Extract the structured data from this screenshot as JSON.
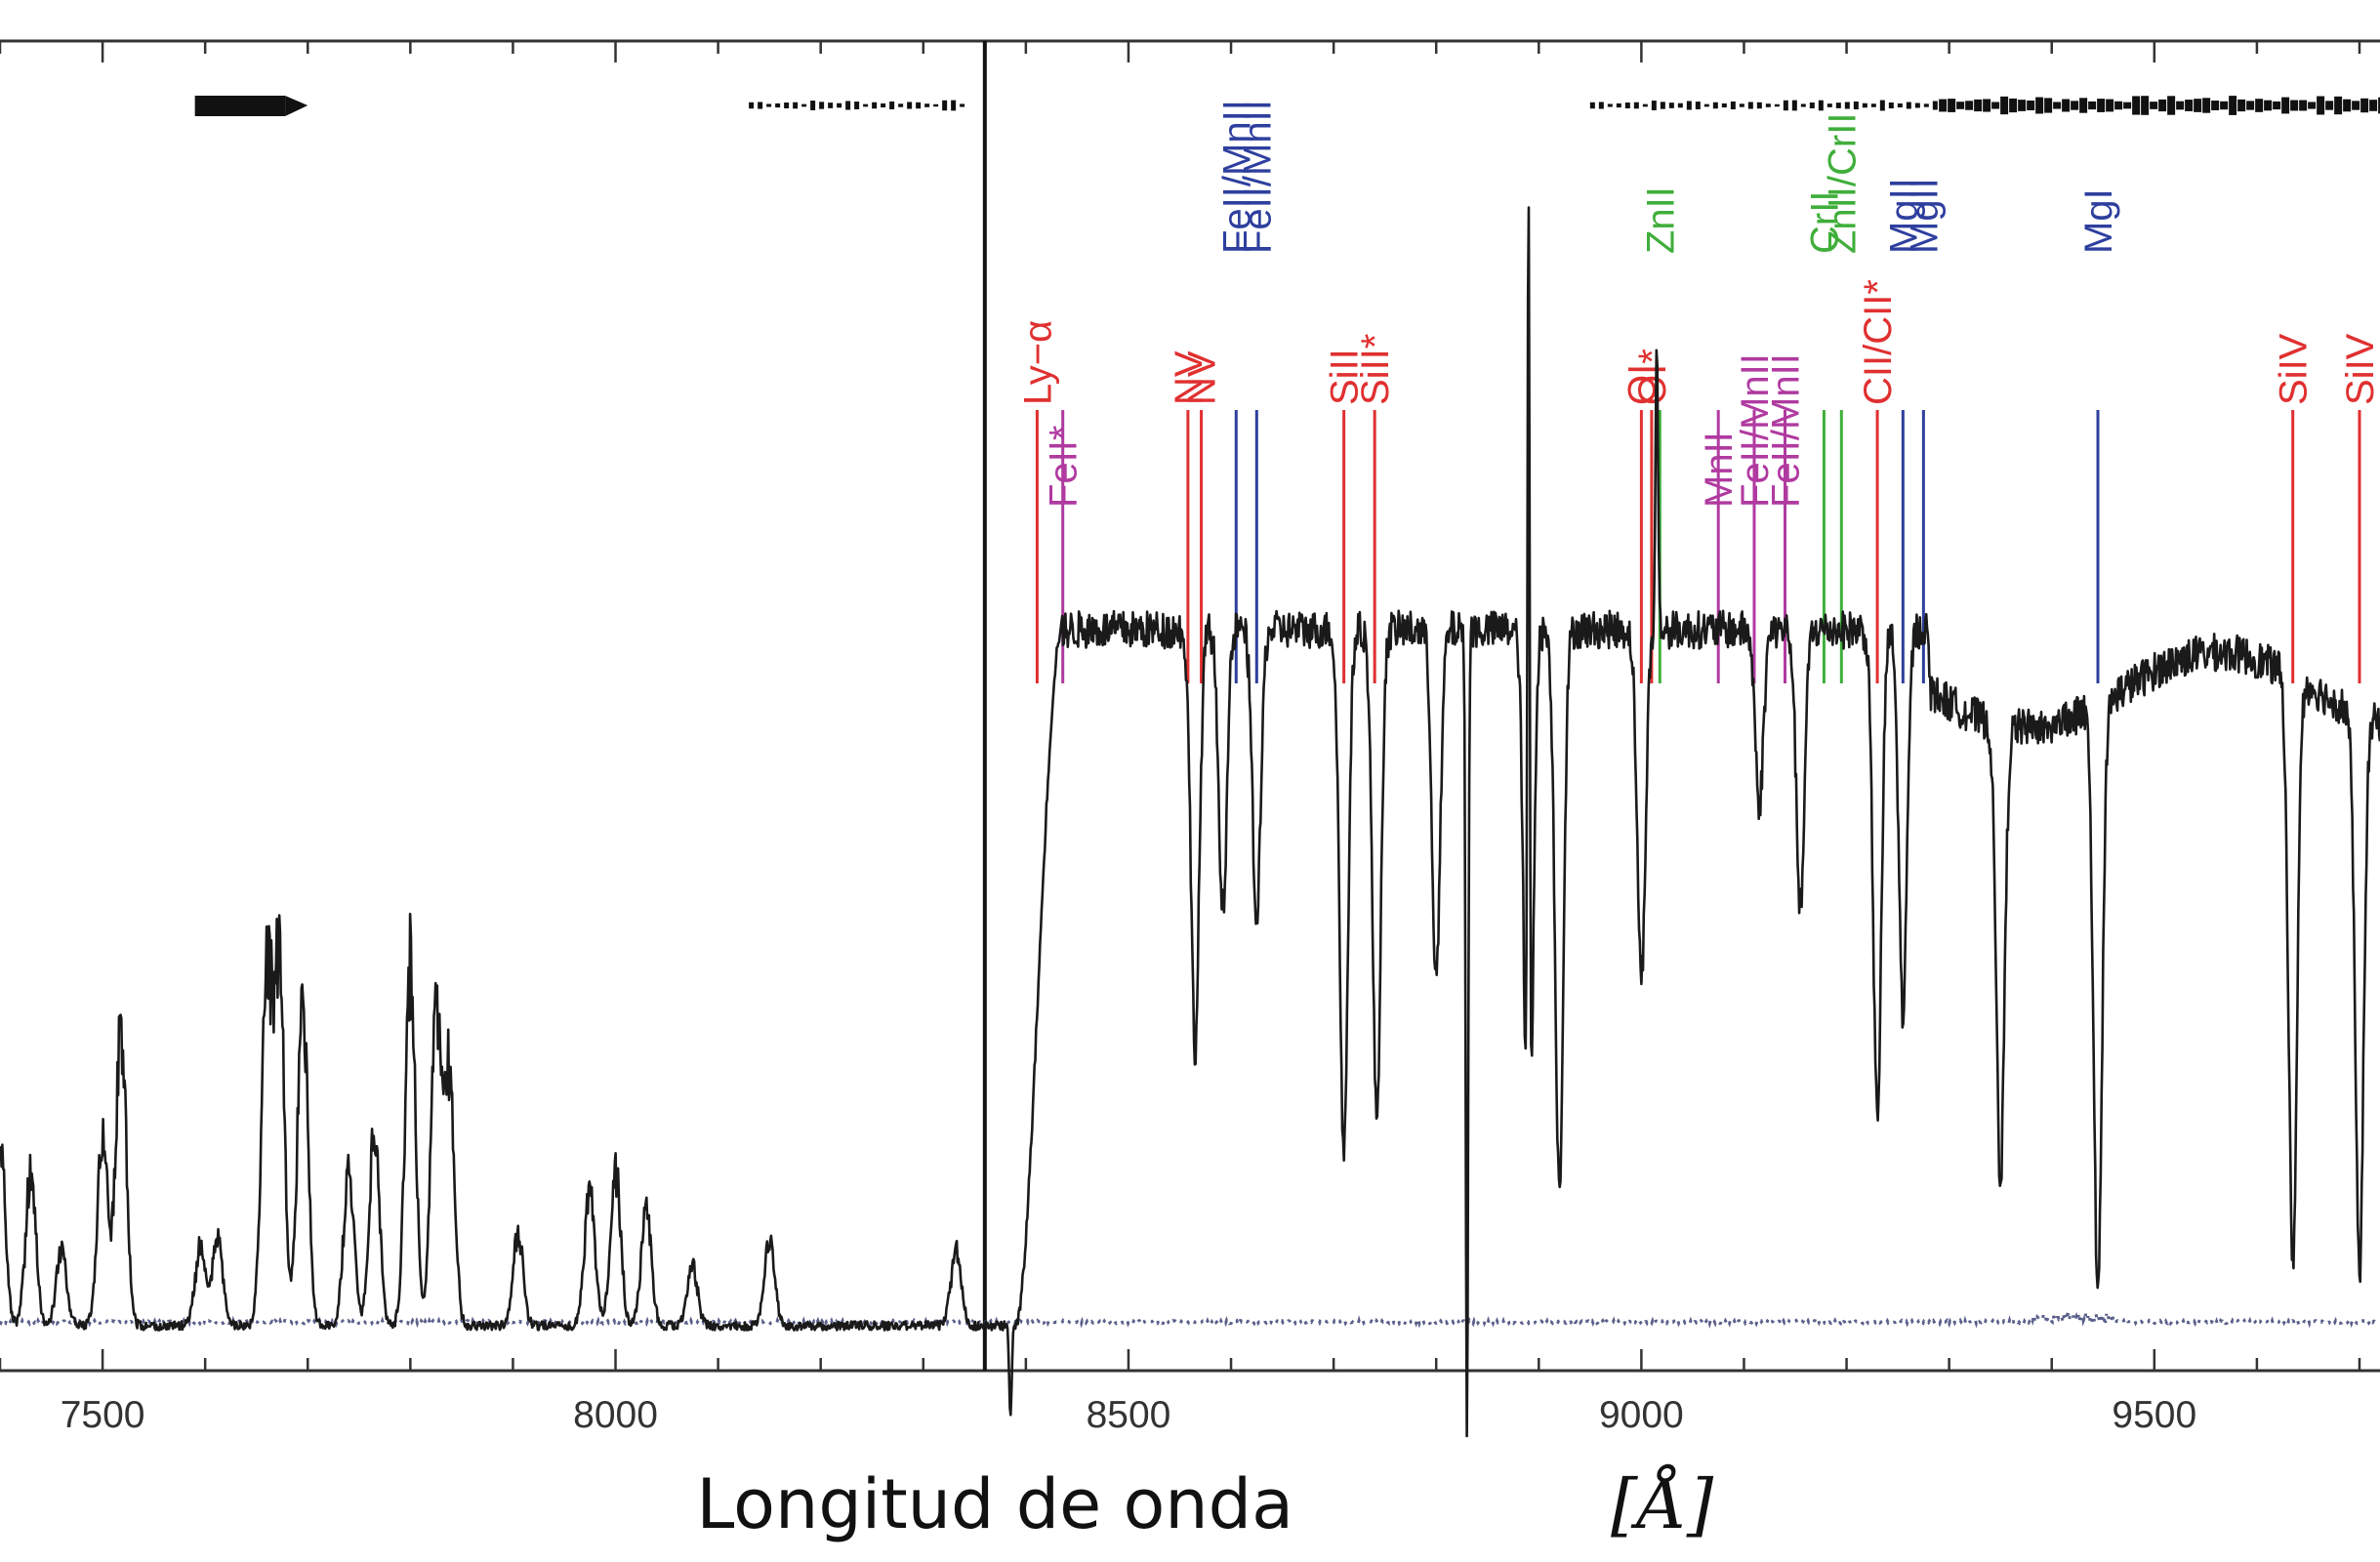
{
  "chart_data": {
    "type": "line",
    "title": "",
    "xlabel": "Longitud de onda",
    "xunit": "[Å]",
    "ylabel": "",
    "xlim": [
      7400,
      9720
    ],
    "ylim": [
      -0.15,
      1.7
    ],
    "x_ticks": [
      7500,
      8000,
      8500,
      9000,
      9500
    ],
    "x_tick_labels": [
      "7500",
      "8000",
      "8500",
      "9000",
      "9500"
    ],
    "grid": false,
    "colors": {
      "spectrum": "#1a1a1a",
      "error": "#5a5f8a",
      "red": "#e03030",
      "magenta": "#b03aa0",
      "blue": "#2e3f9e",
      "green": "#3fae3a"
    },
    "features": [
      {
        "label": "Ly−α",
        "wavelength": 8411,
        "color": "red",
        "tier": 2
      },
      {
        "label": "FeII*",
        "wavelength": 8436,
        "color": "magenta",
        "tier": 1
      },
      {
        "label": "NV",
        "wavelength": 8558,
        "color": "red",
        "tier": 2
      },
      {
        "label": "NV",
        "wavelength": 8571,
        "color": "red",
        "tier": 2
      },
      {
        "label": "FeII/MnII",
        "wavelength": 8605,
        "color": "blue",
        "tier": 3
      },
      {
        "label": "FeII/MnII",
        "wavelength": 8625,
        "color": "blue",
        "tier": 3
      },
      {
        "label": "SiII",
        "wavelength": 8710,
        "color": "red",
        "tier": 2
      },
      {
        "label": "SiII*",
        "wavelength": 8740,
        "color": "red",
        "tier": 2
      },
      {
        "label": "OI",
        "wavelength": 9000,
        "color": "red",
        "tier": 2
      },
      {
        "label": "OI*",
        "wavelength": 9010,
        "color": "red",
        "tier": 2
      },
      {
        "label": "ZnII",
        "wavelength": 9018,
        "color": "green",
        "tier": 3
      },
      {
        "label": "MnII",
        "wavelength": 9075,
        "color": "magenta",
        "tier": 1
      },
      {
        "label": "FeII/MnII",
        "wavelength": 9110,
        "color": "magenta",
        "tier": 1
      },
      {
        "label": "FeII/MnII",
        "wavelength": 9140,
        "color": "magenta",
        "tier": 1
      },
      {
        "label": "CrII",
        "wavelength": 9178,
        "color": "green",
        "tier": 3
      },
      {
        "label": "ZnII/CrII",
        "wavelength": 9195,
        "color": "green",
        "tier": 3
      },
      {
        "label": "CII/CII*",
        "wavelength": 9230,
        "color": "red",
        "tier": 2
      },
      {
        "label": "MgII",
        "wavelength": 9255,
        "color": "blue",
        "tier": 3
      },
      {
        "label": "MgII",
        "wavelength": 9275,
        "color": "blue",
        "tier": 3
      },
      {
        "label": "MgI",
        "wavelength": 9445,
        "color": "blue",
        "tier": 3
      },
      {
        "label": "SiIV",
        "wavelength": 9635,
        "color": "red",
        "tier": 2
      },
      {
        "label": "SiIV",
        "wavelength": 9700,
        "color": "red",
        "tier": 2
      }
    ],
    "vertical_marker": {
      "wavelength": 8360
    },
    "telluric_bands": [
      {
        "from": 7590,
        "to": 7700,
        "strength": "strong"
      },
      {
        "from": 8130,
        "to": 8340,
        "strength": "weak"
      },
      {
        "from": 8950,
        "to": 9290,
        "strength": "weak"
      },
      {
        "from": 9290,
        "to": 9720,
        "strength": "strong"
      }
    ],
    "continuum_blue": 0.0,
    "continuum_red": 0.92,
    "emission_peaks": [
      {
        "x": 7400,
        "y": 0.25
      },
      {
        "x": 7430,
        "y": 0.2
      },
      {
        "x": 7460,
        "y": 0.1
      },
      {
        "x": 7500,
        "y": 0.25
      },
      {
        "x": 7518,
        "y": 0.4
      },
      {
        "x": 7595,
        "y": 0.1
      },
      {
        "x": 7612,
        "y": 0.12
      },
      {
        "x": 7660,
        "y": 0.45
      },
      {
        "x": 7672,
        "y": 0.47
      },
      {
        "x": 7695,
        "y": 0.43
      },
      {
        "x": 7740,
        "y": 0.2
      },
      {
        "x": 7765,
        "y": 0.25
      },
      {
        "x": 7800,
        "y": 0.48
      },
      {
        "x": 7825,
        "y": 0.4
      },
      {
        "x": 7838,
        "y": 0.33
      },
      {
        "x": 7905,
        "y": 0.12
      },
      {
        "x": 7975,
        "y": 0.18
      },
      {
        "x": 8000,
        "y": 0.2
      },
      {
        "x": 8030,
        "y": 0.15
      },
      {
        "x": 8075,
        "y": 0.08
      },
      {
        "x": 8150,
        "y": 0.11
      },
      {
        "x": 8332,
        "y": 0.1
      }
    ],
    "absorption_lines": [
      {
        "x": 8565,
        "depth": 0.6
      },
      {
        "x": 8592,
        "depth": 0.4
      },
      {
        "x": 8625,
        "depth": 0.42
      },
      {
        "x": 8710,
        "depth": 0.75
      },
      {
        "x": 8742,
        "depth": 0.7
      },
      {
        "x": 8800,
        "depth": 0.5
      },
      {
        "x": 8890,
        "depth": 0.9
      },
      {
        "x": 8920,
        "depth": 0.8
      },
      {
        "x": 9000,
        "depth": 0.5
      },
      {
        "x": 9115,
        "depth": 0.25
      },
      {
        "x": 9155,
        "depth": 0.4
      },
      {
        "x": 9230,
        "depth": 0.7
      },
      {
        "x": 9255,
        "depth": 0.55
      },
      {
        "x": 9350,
        "depth": 0.65
      },
      {
        "x": 9445,
        "depth": 0.85
      },
      {
        "x": 9635,
        "depth": 0.85
      },
      {
        "x": 9700,
        "depth": 0.8
      }
    ],
    "spikes": [
      {
        "x": 8830,
        "y": -0.15
      },
      {
        "x": 8890,
        "y": 1.5
      },
      {
        "x": 9015,
        "y": 1.3
      },
      {
        "x": 8385,
        "y": -0.12
      }
    ]
  }
}
